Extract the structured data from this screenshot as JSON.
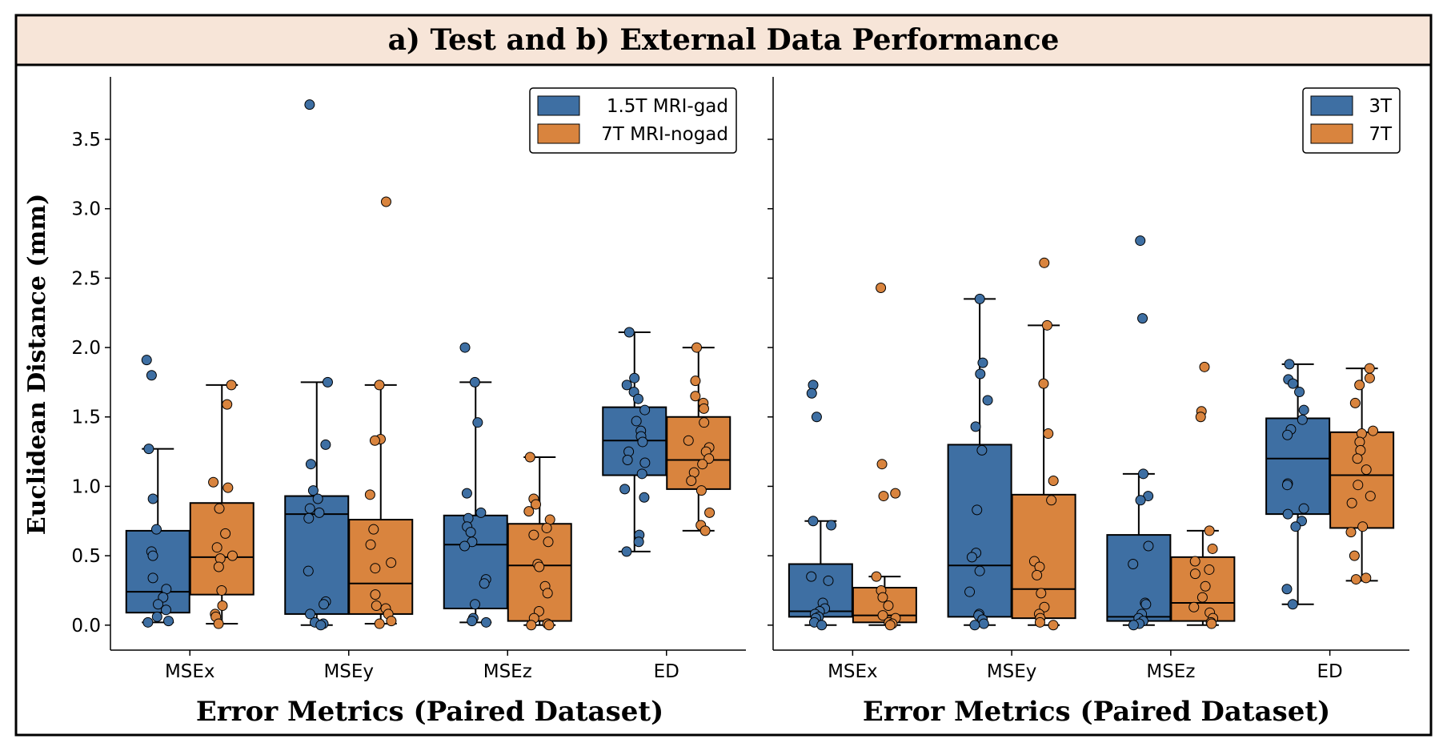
{
  "title": "a) Test and b) External Data Performance",
  "colors": {
    "blue": "#3e6fa3",
    "orange": "#d9843e",
    "title_bg": "#f7e5d8"
  },
  "chart_data": [
    {
      "type": "box",
      "panel": "a",
      "xlabel": "Error Metrics (Paired Dataset)",
      "ylabel": "Euclidean Distance (mm)",
      "ylim": [
        -0.18,
        3.95
      ],
      "yticks": [
        "0.0",
        "0.5",
        "1.0",
        "1.5",
        "2.0",
        "2.5",
        "3.0",
        "3.5"
      ],
      "categories": [
        "MSEx",
        "MSEy",
        "MSEz",
        "ED"
      ],
      "legend_position": "top-right",
      "series": [
        {
          "name": "1.5T MRI-gad",
          "color": "#3e6fa3",
          "boxes": [
            {
              "whisker_low": 0.02,
              "q1": 0.09,
              "median": 0.24,
              "q3": 0.68,
              "whisker_high": 1.27,
              "points": [
                1.91,
                1.8,
                1.27,
                0.91,
                0.69,
                0.53,
                0.5,
                0.34,
                0.26,
                0.2,
                0.15,
                0.11,
                0.06,
                0.03,
                0.02
              ]
            },
            {
              "whisker_low": 0.0,
              "q1": 0.08,
              "median": 0.8,
              "q3": 0.93,
              "whisker_high": 1.75,
              "points": [
                3.75,
                1.75,
                1.3,
                1.16,
                0.97,
                0.91,
                0.84,
                0.81,
                0.77,
                0.39,
                0.17,
                0.15,
                0.08,
                0.02,
                0.01,
                0.0
              ]
            },
            {
              "whisker_low": 0.02,
              "q1": 0.12,
              "median": 0.58,
              "q3": 0.79,
              "whisker_high": 1.75,
              "points": [
                2.0,
                1.75,
                1.46,
                0.95,
                0.81,
                0.77,
                0.71,
                0.67,
                0.6,
                0.57,
                0.33,
                0.3,
                0.15,
                0.05,
                0.03,
                0.02
              ]
            },
            {
              "whisker_low": 0.53,
              "q1": 1.08,
              "median": 1.33,
              "q3": 1.57,
              "whisker_high": 2.11,
              "points": [
                2.11,
                1.78,
                1.73,
                1.68,
                1.63,
                1.55,
                1.47,
                1.4,
                1.36,
                1.32,
                1.25,
                1.19,
                1.17,
                1.09,
                0.98,
                0.92,
                0.65,
                0.6,
                0.53
              ]
            }
          ]
        },
        {
          "name": "7T MRI-nogad",
          "color": "#d9843e",
          "boxes": [
            {
              "whisker_low": 0.01,
              "q1": 0.22,
              "median": 0.49,
              "q3": 0.88,
              "whisker_high": 1.73,
              "points": [
                1.73,
                1.59,
                1.03,
                0.99,
                0.84,
                0.66,
                0.56,
                0.5,
                0.48,
                0.42,
                0.25,
                0.14,
                0.08,
                0.06,
                0.01
              ]
            },
            {
              "whisker_low": 0.01,
              "q1": 0.08,
              "median": 0.3,
              "q3": 0.76,
              "whisker_high": 1.73,
              "points": [
                3.05,
                1.73,
                1.34,
                1.33,
                0.94,
                0.69,
                0.58,
                0.45,
                0.41,
                0.22,
                0.14,
                0.12,
                0.08,
                0.03,
                0.01
              ]
            },
            {
              "whisker_low": 0.0,
              "q1": 0.03,
              "median": 0.43,
              "q3": 0.73,
              "whisker_high": 1.21,
              "points": [
                1.21,
                0.91,
                0.87,
                0.82,
                0.76,
                0.7,
                0.65,
                0.6,
                0.44,
                0.42,
                0.28,
                0.23,
                0.1,
                0.05,
                0.01,
                0.0,
                0.0
              ]
            },
            {
              "whisker_low": 0.68,
              "q1": 0.98,
              "median": 1.19,
              "q3": 1.5,
              "whisker_high": 2.0,
              "points": [
                2.0,
                1.76,
                1.65,
                1.6,
                1.56,
                1.46,
                1.33,
                1.28,
                1.25,
                1.2,
                1.16,
                1.1,
                1.04,
                0.97,
                0.81,
                0.72,
                0.68
              ]
            }
          ]
        }
      ]
    },
    {
      "type": "box",
      "panel": "b",
      "xlabel": "Error Metrics (Paired Dataset)",
      "ylim": [
        -0.18,
        3.95
      ],
      "categories": [
        "MSEx",
        "MSEy",
        "MSEz",
        "ED"
      ],
      "legend_position": "top-right",
      "series": [
        {
          "name": "3T",
          "color": "#3e6fa3",
          "boxes": [
            {
              "whisker_low": 0.0,
              "q1": 0.06,
              "median": 0.1,
              "q3": 0.44,
              "whisker_high": 0.75,
              "points": [
                1.73,
                1.67,
                1.5,
                0.75,
                0.72,
                0.35,
                0.32,
                0.16,
                0.12,
                0.1,
                0.08,
                0.06,
                0.05,
                0.02,
                0.0
              ]
            },
            {
              "whisker_low": 0.0,
              "q1": 0.06,
              "median": 0.43,
              "q3": 1.3,
              "whisker_high": 2.35,
              "points": [
                2.35,
                1.89,
                1.81,
                1.62,
                1.43,
                1.26,
                0.83,
                0.52,
                0.49,
                0.39,
                0.24,
                0.08,
                0.07,
                0.04,
                0.01,
                0.0
              ]
            },
            {
              "whisker_low": 0.0,
              "q1": 0.03,
              "median": 0.06,
              "q3": 0.65,
              "whisker_high": 1.09,
              "points": [
                2.77,
                2.21,
                1.09,
                0.93,
                0.9,
                0.57,
                0.44,
                0.16,
                0.15,
                0.08,
                0.05,
                0.03,
                0.01,
                0.0
              ]
            },
            {
              "whisker_low": 0.15,
              "q1": 0.8,
              "median": 1.2,
              "q3": 1.49,
              "whisker_high": 1.88,
              "points": [
                1.88,
                1.77,
                1.74,
                1.68,
                1.55,
                1.48,
                1.41,
                1.37,
                1.02,
                1.01,
                0.84,
                0.8,
                0.75,
                0.71,
                0.26,
                0.15
              ]
            }
          ]
        },
        {
          "name": "7T",
          "color": "#d9843e",
          "boxes": [
            {
              "whisker_low": 0.0,
              "q1": 0.02,
              "median": 0.07,
              "q3": 0.27,
              "whisker_high": 0.35,
              "points": [
                2.43,
                1.16,
                0.95,
                0.93,
                0.35,
                0.25,
                0.2,
                0.14,
                0.07,
                0.05,
                0.02,
                0.01,
                0.0
              ]
            },
            {
              "whisker_low": 0.0,
              "q1": 0.05,
              "median": 0.26,
              "q3": 0.94,
              "whisker_high": 2.16,
              "points": [
                2.61,
                2.16,
                1.74,
                1.38,
                1.04,
                0.9,
                0.46,
                0.42,
                0.36,
                0.23,
                0.13,
                0.08,
                0.05,
                0.02,
                0.0
              ]
            },
            {
              "whisker_low": 0.0,
              "q1": 0.03,
              "median": 0.16,
              "q3": 0.49,
              "whisker_high": 0.68,
              "points": [
                1.86,
                1.54,
                1.5,
                0.68,
                0.55,
                0.46,
                0.4,
                0.37,
                0.28,
                0.2,
                0.13,
                0.09,
                0.05,
                0.02,
                0.01
              ]
            },
            {
              "whisker_low": 0.32,
              "q1": 0.7,
              "median": 1.08,
              "q3": 1.39,
              "whisker_high": 1.85,
              "points": [
                1.85,
                1.78,
                1.73,
                1.6,
                1.4,
                1.38,
                1.32,
                1.26,
                1.2,
                1.12,
                1.01,
                0.93,
                0.88,
                0.71,
                0.67,
                0.5,
                0.34,
                0.33
              ]
            }
          ]
        }
      ]
    }
  ]
}
